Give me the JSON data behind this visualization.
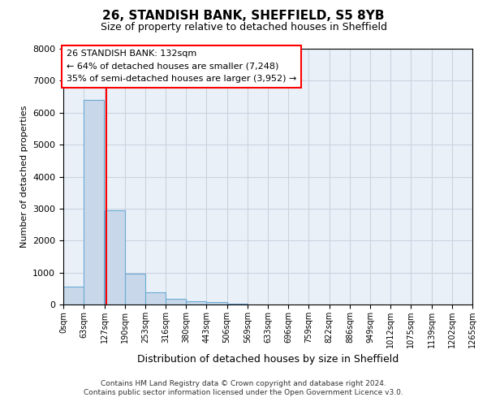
{
  "title": "26, STANDISH BANK, SHEFFIELD, S5 8YB",
  "subtitle": "Size of property relative to detached houses in Sheffield",
  "xlabel": "Distribution of detached houses by size in Sheffield",
  "ylabel": "Number of detached properties",
  "bar_color": "#c8d8ea",
  "bar_edge_color": "#6aaad4",
  "grid_color": "#c8d4e0",
  "background_color": "#eaf0f8",
  "bin_edges": [
    0,
    63,
    127,
    190,
    253,
    316,
    380,
    443,
    506,
    569,
    633,
    696,
    759,
    822,
    886,
    949,
    1012,
    1075,
    1139,
    1202,
    1265
  ],
  "bin_labels": [
    "0sqm",
    "63sqm",
    "127sqm",
    "190sqm",
    "253sqm",
    "316sqm",
    "380sqm",
    "443sqm",
    "506sqm",
    "569sqm",
    "633sqm",
    "696sqm",
    "759sqm",
    "822sqm",
    "886sqm",
    "949sqm",
    "1012sqm",
    "1075sqm",
    "1139sqm",
    "1202sqm",
    "1265sqm"
  ],
  "values": [
    550,
    6400,
    2950,
    970,
    380,
    175,
    110,
    65,
    30,
    0,
    0,
    0,
    0,
    0,
    0,
    0,
    0,
    0,
    0,
    0
  ],
  "property_size": 132,
  "annotation_title": "26 STANDISH BANK: 132sqm",
  "annotation_line1": "← 64% of detached houses are smaller (7,248)",
  "annotation_line2": "35% of semi-detached houses are larger (3,952) →",
  "vline_color": "red",
  "ylim": [
    0,
    8000
  ],
  "yticks": [
    0,
    1000,
    2000,
    3000,
    4000,
    5000,
    6000,
    7000,
    8000
  ],
  "footer_line1": "Contains HM Land Registry data © Crown copyright and database right 2024.",
  "footer_line2": "Contains public sector information licensed under the Open Government Licence v3.0."
}
